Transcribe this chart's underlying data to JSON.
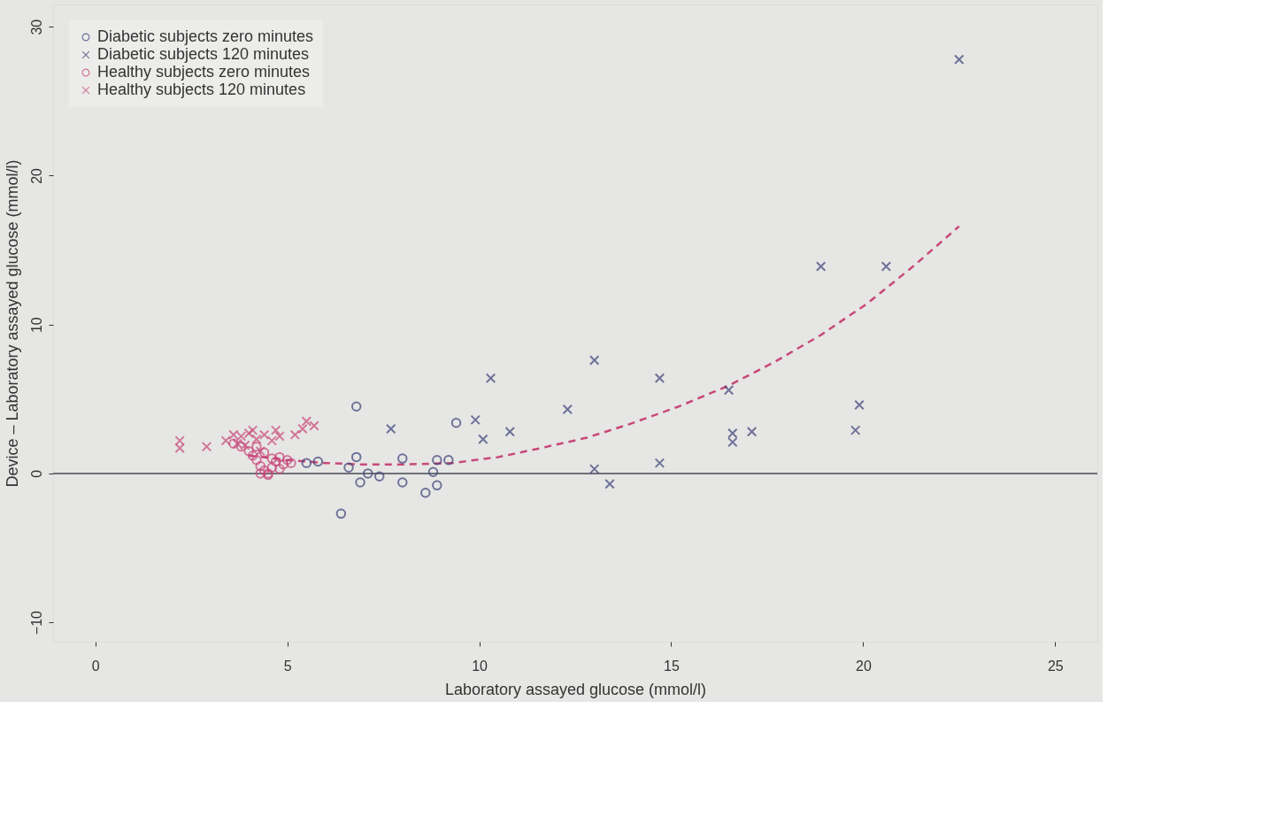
{
  "chart_data": {
    "type": "scatter",
    "xlabel": "Laboratory assayed glucose (mmol/l)",
    "ylabel": "Device – Laboratory assayed glucose (mmol/l)",
    "xlim": [
      -1.1,
      26.1
    ],
    "ylim": [
      -11.3,
      31.5
    ],
    "xticks": [
      0,
      5,
      10,
      15,
      20,
      25
    ],
    "yticks": [
      -10,
      0,
      10,
      20,
      30
    ],
    "grid": false,
    "legend": "top left",
    "ref_lines": [
      {
        "axis": "y",
        "value": 0,
        "color": "#6e7078"
      }
    ],
    "series": [
      {
        "name": "Diabetic subjects zero minutes",
        "color": "#3c4178",
        "marker": "circle",
        "x": [
          6.8,
          6.4,
          9.4,
          5.5,
          5.8,
          6.8,
          6.6,
          6.9,
          7.4,
          7.1,
          8.0,
          8.0,
          8.9,
          9.2,
          8.8,
          8.9,
          8.6
        ],
        "values": [
          4.5,
          -2.7,
          3.4,
          0.7,
          0.8,
          1.1,
          0.4,
          -0.6,
          -0.2,
          0.0,
          1.0,
          -0.6,
          0.9,
          0.9,
          0.1,
          -0.8,
          -1.3
        ]
      },
      {
        "name": "Diabetic subjects 120 minutes",
        "color": "#3c4178",
        "marker": "cross",
        "x": [
          22.5,
          18.9,
          20.6,
          13.0,
          14.7,
          10.3,
          12.3,
          16.5,
          19.9,
          19.8,
          16.6,
          16.6,
          17.1,
          7.7,
          9.9,
          10.1,
          10.8,
          14.7,
          13.0,
          13.4
        ],
        "values": [
          27.8,
          13.9,
          13.9,
          7.6,
          6.4,
          6.4,
          4.3,
          5.6,
          4.6,
          2.9,
          2.7,
          2.1,
          2.8,
          3.0,
          3.6,
          2.3,
          2.8,
          0.7,
          0.3,
          -0.7
        ]
      },
      {
        "name": "Healthy subjects zero minutes",
        "color": "#c8487a",
        "marker": "circle",
        "x": [
          3.8,
          4.0,
          4.1,
          4.2,
          4.3,
          4.4,
          4.5,
          4.6,
          4.7,
          4.8,
          4.9,
          5.0,
          4.4,
          4.6,
          4.2,
          4.5,
          4.8,
          5.1,
          3.6,
          4.3
        ],
        "values": [
          1.8,
          1.5,
          1.2,
          0.9,
          0.5,
          0.2,
          -0.1,
          0.4,
          0.8,
          1.1,
          0.6,
          0.9,
          1.4,
          1.0,
          1.8,
          0.0,
          0.3,
          0.7,
          2.0,
          0.0
        ]
      },
      {
        "name": "Healthy subjects 120 minutes",
        "color": "#c8487a",
        "marker": "cross",
        "x": [
          2.2,
          2.2,
          2.9,
          3.4,
          3.6,
          3.8,
          4.0,
          4.2,
          4.4,
          4.6,
          4.8,
          5.2,
          5.4,
          5.5,
          5.7,
          3.9,
          4.3,
          4.1,
          3.7,
          4.7
        ],
        "values": [
          2.2,
          1.7,
          1.8,
          2.2,
          2.6,
          2.5,
          2.7,
          2.3,
          2.6,
          2.2,
          2.5,
          2.6,
          3.0,
          3.5,
          3.2,
          1.9,
          1.5,
          2.9,
          2.0,
          2.9
        ]
      },
      {
        "type": "line",
        "color": "#c8487a",
        "marker": "none",
        "line_style": "dashed",
        "x": [
          4,
          5,
          6,
          7,
          8,
          9.3,
          10.5,
          11.6,
          12.8,
          13.9,
          15.2,
          16.5,
          17.7,
          18.9,
          20.1,
          21.3,
          22.5
        ],
        "values": [
          1.2,
          0.9,
          0.7,
          0.6,
          0.6,
          0.7,
          1.1,
          1.7,
          2.4,
          3.3,
          4.5,
          5.9,
          7.5,
          9.3,
          11.4,
          13.9,
          16.6
        ]
      }
    ]
  }
}
